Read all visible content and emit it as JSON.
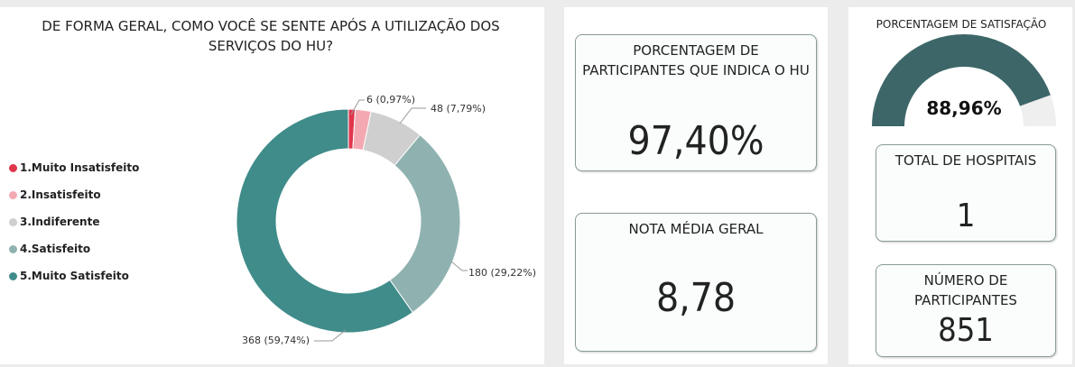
{
  "chart_data": [
    {
      "type": "donut",
      "title": "DE FORMA GERAL, COMO VOCÊ SE SENTE APÓS A UTILIZAÇÃO DOS SERVIÇOS DO HU?",
      "categories": [
        "1.Muito Insatisfeito",
        "2.Insatisfeito",
        "3.Indiferente",
        "4.Satisfeito",
        "5.Muito Satisfeito"
      ],
      "values": [
        6,
        14,
        48,
        180,
        368
      ],
      "value_labels": [
        "6 (0,97%)",
        null,
        "48 (7,79%)",
        "180 (29,22%)",
        "368 (59,74%)"
      ],
      "colors": [
        "#e0364c",
        "#f4a9b2",
        "#cfcfcf",
        "#8fb2b0",
        "#3f8c8a"
      ],
      "legend": "left"
    },
    {
      "type": "gauge",
      "title": "PORCENTAGEM DE SATISFAÇÃO",
      "values": [
        88.96
      ],
      "value_labels": [
        "88,96%"
      ],
      "ylim": [
        0,
        100
      ],
      "color": "#3d6668",
      "track_color": "#efefef"
    }
  ],
  "cards": [
    {
      "title": "PORCENTAGEM DE PARTICIPANTES QUE INDICA O HU",
      "value": "97,40%"
    },
    {
      "title": "NOTA MÉDIA GERAL",
      "value": "8,78"
    },
    {
      "title": "TOTAL DE HOSPITAIS",
      "value": "1"
    },
    {
      "title": "NÚMERO DE PARTICIPANTES",
      "value": "851"
    }
  ]
}
